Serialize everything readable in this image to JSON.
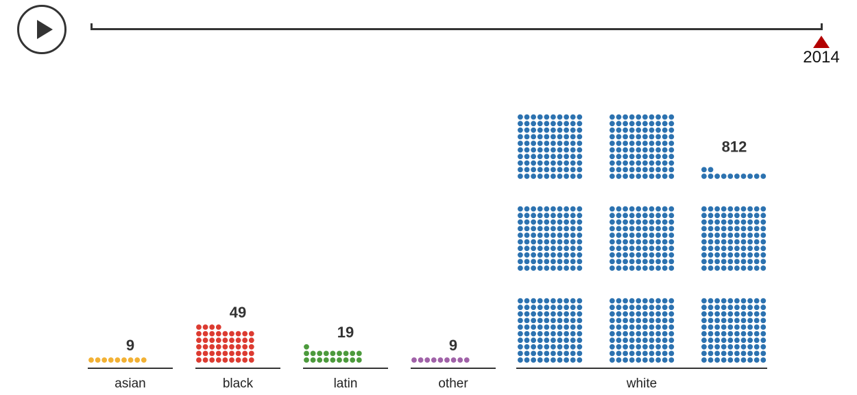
{
  "controls": {
    "play_icon": "play-icon",
    "year": "2014",
    "marker_color": "#b30000"
  },
  "chart_data": {
    "type": "unit-dot",
    "title": "",
    "categories": [
      "asian",
      "black",
      "latin",
      "other",
      "white"
    ],
    "values": [
      9,
      49,
      19,
      9,
      812
    ],
    "colors": [
      "#f2b134",
      "#dc3b31",
      "#4c9a3c",
      "#a062a8",
      "#2c72b0"
    ],
    "legend": "none"
  }
}
